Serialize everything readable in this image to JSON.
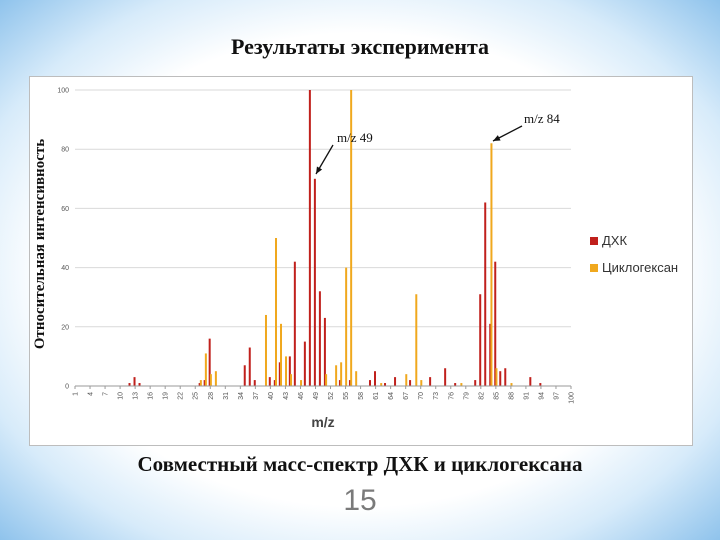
{
  "slide": {
    "title": "Результаты эксперимента",
    "caption": "Совместный масс-спектр ДХК и циклогексана",
    "page_number": "15"
  },
  "colors": {
    "series1": "#c0201c",
    "series2": "#f0a81e",
    "grid": "#d9d9d9",
    "axis": "#9a9a9a"
  },
  "chart_data": {
    "type": "bar",
    "title": "",
    "xlabel": "m/z",
    "ylabel": "Относительная интенсивность",
    "xlim": [
      1,
      100
    ],
    "ylim": [
      0,
      100
    ],
    "yticks": [
      0,
      20,
      40,
      60,
      80,
      100
    ],
    "xticks": [
      1,
      4,
      7,
      10,
      13,
      16,
      19,
      22,
      25,
      28,
      31,
      34,
      37,
      40,
      43,
      46,
      49,
      52,
      55,
      58,
      61,
      64,
      67,
      70,
      73,
      76,
      79,
      82,
      85,
      88,
      91,
      94,
      97,
      100
    ],
    "grid": true,
    "legend_position": "right",
    "series": [
      {
        "name": "ДХК",
        "color": "#c0201c",
        "points": [
          [
            12,
            1
          ],
          [
            13,
            3
          ],
          [
            14,
            1
          ],
          [
            26,
            1
          ],
          [
            27,
            2
          ],
          [
            28,
            16
          ],
          [
            35,
            7
          ],
          [
            36,
            13
          ],
          [
            37,
            2
          ],
          [
            40,
            3
          ],
          [
            41,
            2
          ],
          [
            42,
            8
          ],
          [
            44,
            10
          ],
          [
            45,
            42
          ],
          [
            47,
            15
          ],
          [
            48,
            100
          ],
          [
            49,
            70
          ],
          [
            50,
            32
          ],
          [
            51,
            23
          ],
          [
            54,
            2
          ],
          [
            56,
            2
          ],
          [
            60,
            2
          ],
          [
            61,
            5
          ],
          [
            63,
            1
          ],
          [
            65,
            3
          ],
          [
            68,
            2
          ],
          [
            72,
            3
          ],
          [
            75,
            6
          ],
          [
            77,
            1
          ],
          [
            81,
            2
          ],
          [
            82,
            31
          ],
          [
            83,
            62
          ],
          [
            84,
            21
          ],
          [
            85,
            42
          ],
          [
            86,
            5
          ],
          [
            87,
            6
          ],
          [
            92,
            3
          ],
          [
            94,
            1
          ]
        ]
      },
      {
        "name": "Циклогексан",
        "color": "#f0a81e",
        "points": [
          [
            26,
            2
          ],
          [
            27,
            11
          ],
          [
            28,
            4
          ],
          [
            29,
            5
          ],
          [
            39,
            24
          ],
          [
            41,
            50
          ],
          [
            42,
            21
          ],
          [
            43,
            10
          ],
          [
            44,
            4
          ],
          [
            46,
            2
          ],
          [
            51,
            4
          ],
          [
            53,
            7
          ],
          [
            54,
            8
          ],
          [
            55,
            40
          ],
          [
            56,
            100
          ],
          [
            57,
            5
          ],
          [
            62,
            1
          ],
          [
            67,
            4
          ],
          [
            69,
            31
          ],
          [
            70,
            2
          ],
          [
            78,
            1
          ],
          [
            84,
            82
          ],
          [
            85,
            6
          ],
          [
            88,
            1
          ]
        ]
      }
    ],
    "annotations": [
      {
        "text": "m/z 49",
        "x": 49,
        "y": 70
      },
      {
        "text": "m/z 84",
        "x": 84,
        "y": 82
      }
    ]
  }
}
